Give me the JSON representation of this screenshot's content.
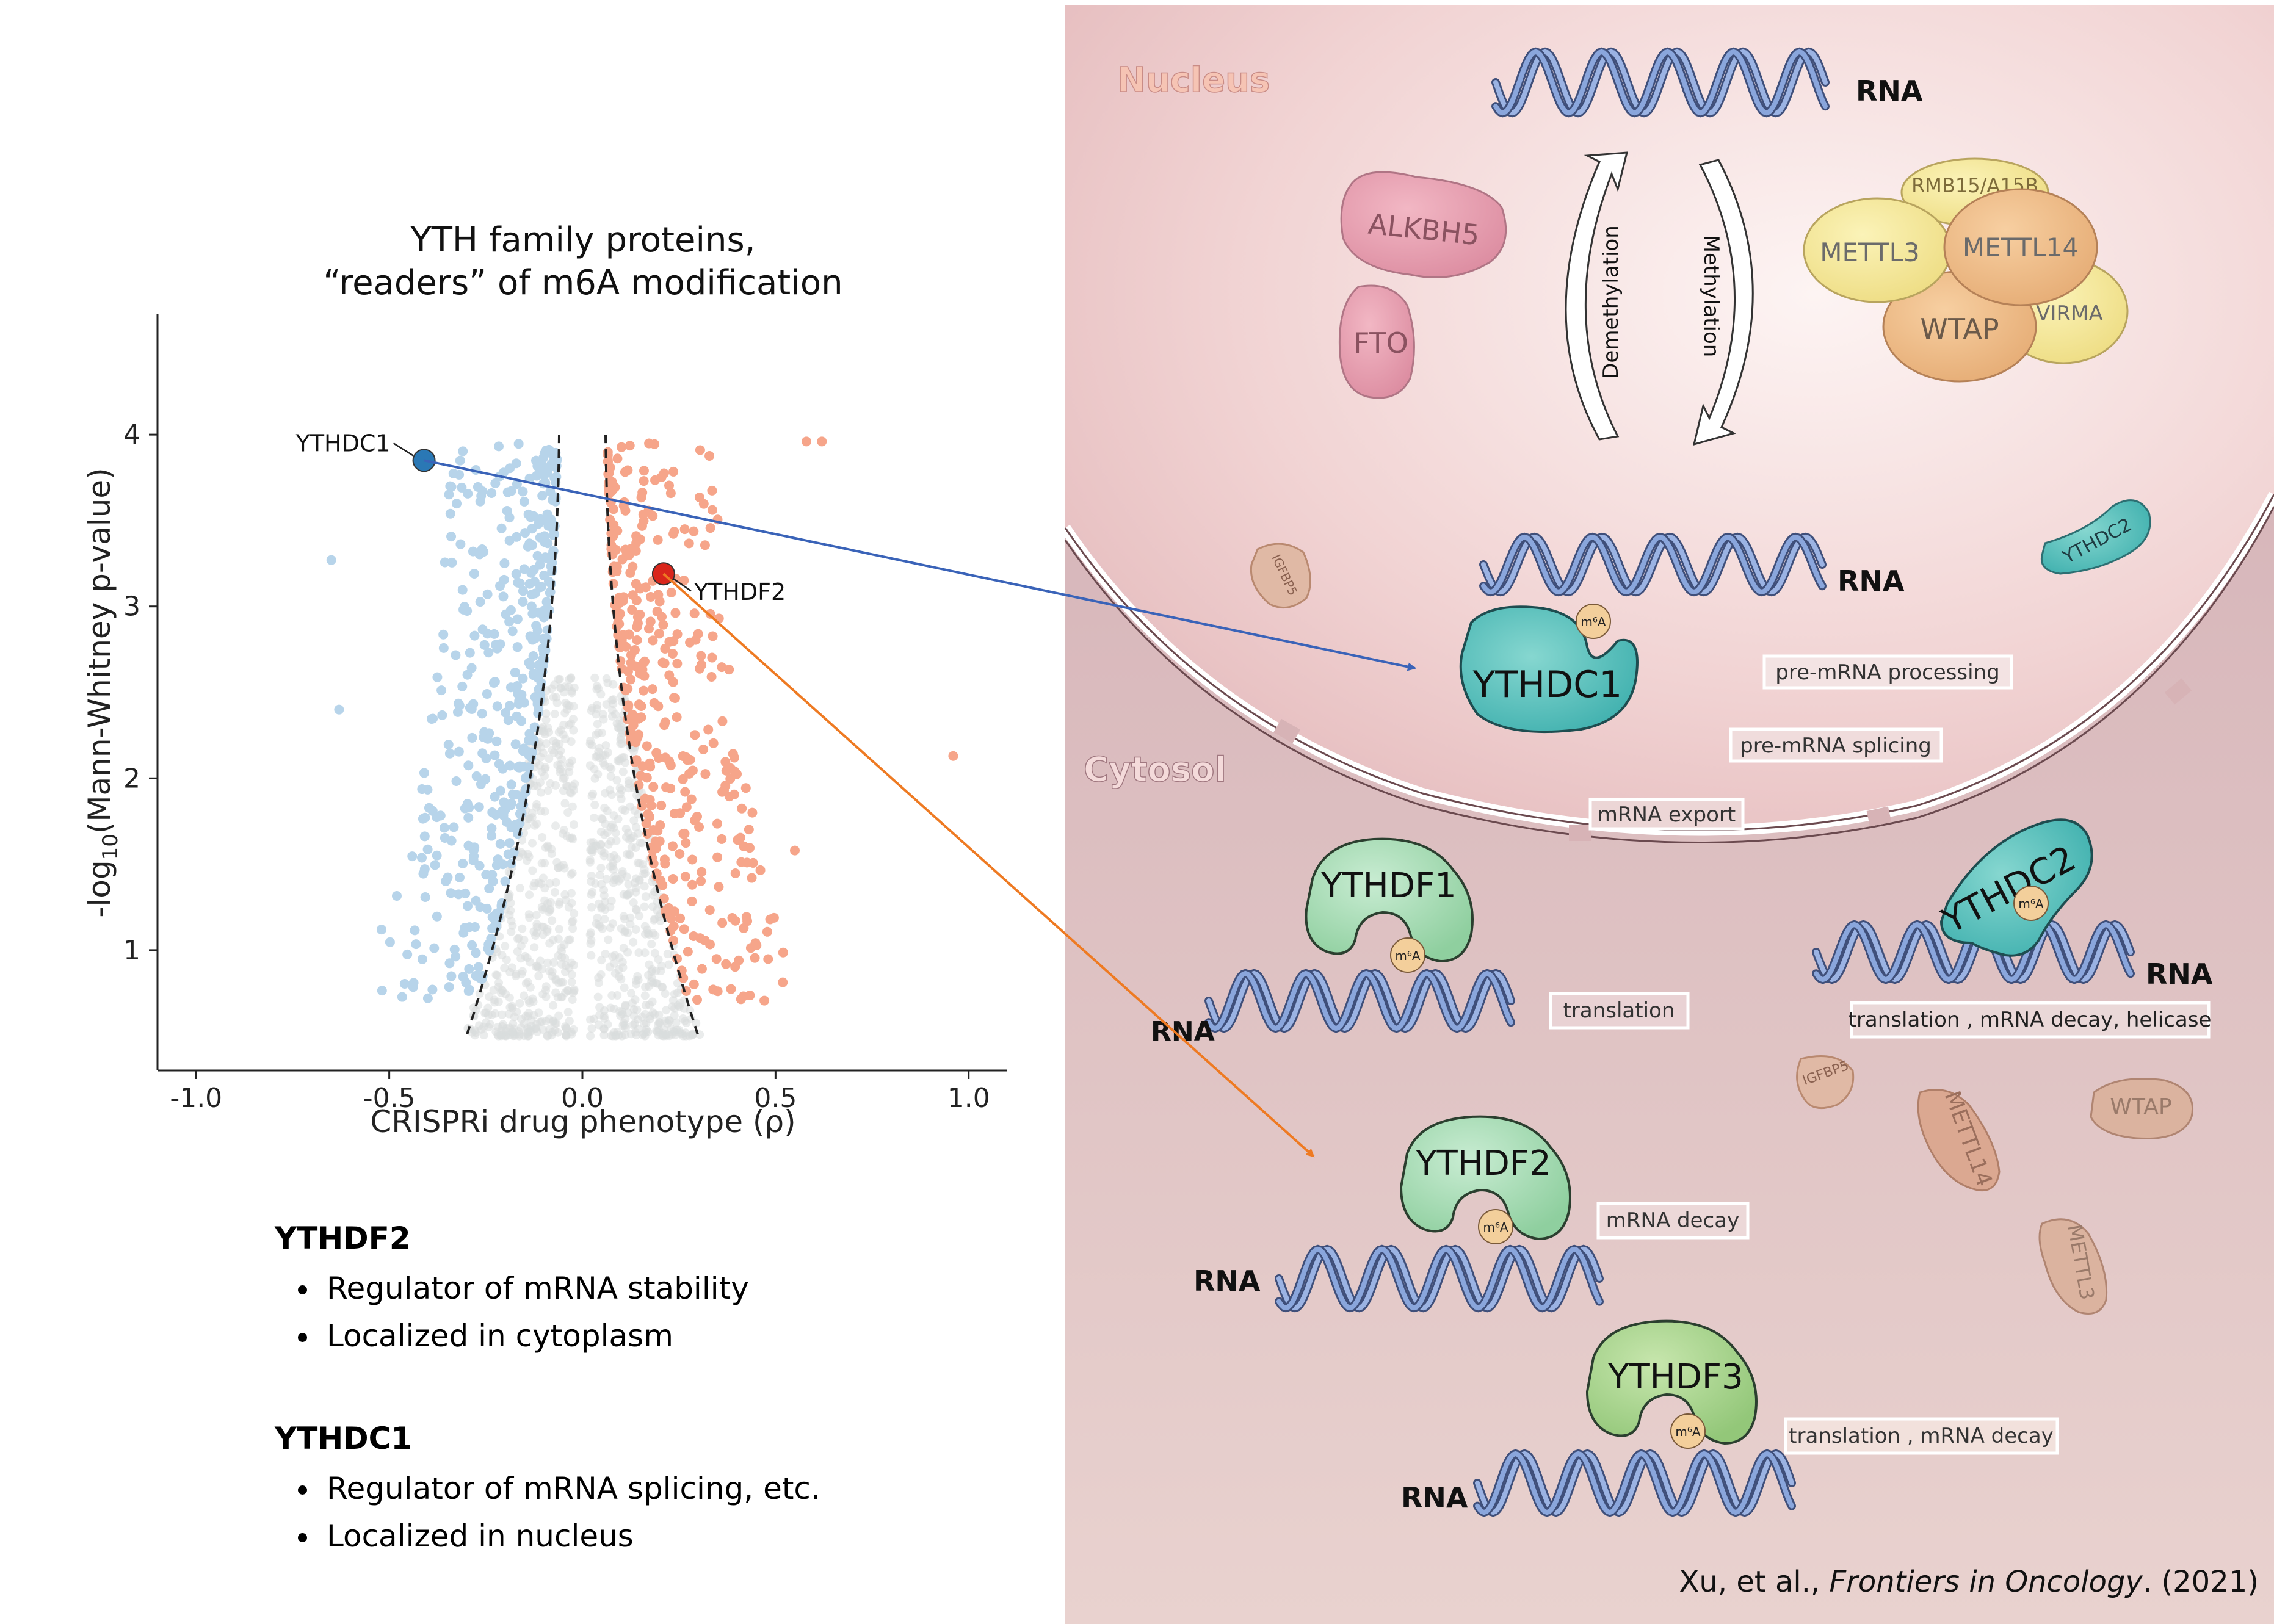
{
  "chart_data": {
    "type": "scatter",
    "title_line1": "YTH family proteins,",
    "title_line2": "“readers” of m6A modification",
    "xlabel": "CRISPRi drug phenotype (ρ)",
    "ylabel_prefix": "-log",
    "ylabel_sub": "10",
    "ylabel_suffix": "(Mann-Whitney p-value)",
    "xlim": [
      -1.1,
      1.1
    ],
    "ylim": [
      0.3,
      4.7
    ],
    "x_ticks": [
      -1.0,
      -0.5,
      0.0,
      0.5,
      1.0
    ],
    "x_tick_labels": [
      "-1.0",
      "-0.5",
      "0.0",
      "0.5",
      "1.0"
    ],
    "y_ticks": [
      1,
      2,
      3,
      4
    ],
    "y_tick_labels": [
      "1",
      "2",
      "3",
      "4"
    ],
    "threshold_lines": "dashed",
    "colors": {
      "negative": "#b7d4ea",
      "positive": "#f6a58a",
      "neutral": "#d9dcdd",
      "highlight_neg": "#2a78b5",
      "highlight_pos": "#d9261c"
    },
    "highlights": [
      {
        "name": "YTHDC1",
        "x": -0.41,
        "y": 3.85
      },
      {
        "name": "YTHDF2",
        "x": 0.21,
        "y": 3.19
      }
    ]
  },
  "notes": [
    {
      "heading": "YTHDF2",
      "bullets": [
        "Regulator of mRNA stability",
        "Localized in cytoplasm"
      ]
    },
    {
      "heading": "YTHDC1",
      "bullets": [
        "Regulator of mRNA splicing, etc.",
        "Localized in nucleus"
      ]
    }
  ],
  "diagram": {
    "nucleus": "Nucleus",
    "cytosol": "Cytosol",
    "rna": "RNA",
    "demethylation": "Demethylation",
    "methylation": "Methylation",
    "m6a": "m⁶A",
    "proteins": {
      "alkbh5": "ALKBH5",
      "fto": "FTO",
      "rbm15": "RMB15/A15B",
      "mettl3": "METTL3",
      "mettl14": "METTL14",
      "wtap": "WTAP",
      "virma": "VIRMA",
      "igfbp5": "IGFBP5",
      "ythdc2": "YTHDC2",
      "ythdc1": "YTHDC1",
      "ythdf1": "YTHDF1",
      "ythdf2": "YTHDF2",
      "ythdf3": "YTHDF3"
    },
    "functions": {
      "pre_processing": "pre-mRNA processing",
      "pre_splicing": "pre-mRNA splicing",
      "export": "mRNA export",
      "translation": "translation",
      "dc2_funcs": "translation , mRNA decay, helicase",
      "decay": "mRNA decay",
      "df3_funcs": "translation , mRNA decay"
    },
    "citation_prefix": "Xu, et al., ",
    "citation_journal": "Frontiers in Oncology",
    "citation_suffix": ". (2021)"
  }
}
